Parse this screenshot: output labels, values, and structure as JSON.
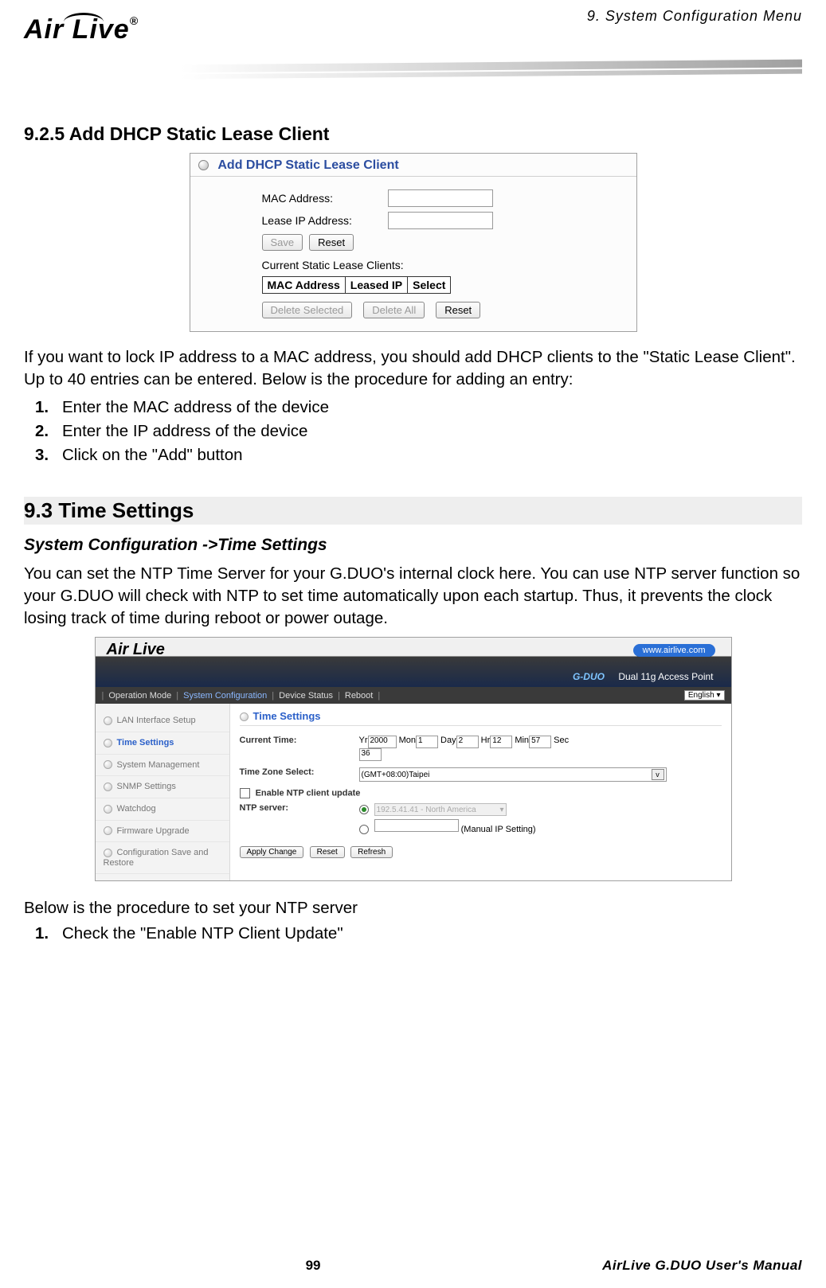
{
  "header": {
    "chapter": "9. System Configuration Menu",
    "logo_text": "Air Live",
    "logo_reg": "®"
  },
  "section_925": {
    "title": "9.2.5 Add DHCP Static Lease Client",
    "panel_title": "Add DHCP Static Lease Client",
    "mac_label": "MAC Address:",
    "ip_label": "Lease IP Address:",
    "save_btn": "Save",
    "reset_btn": "Reset",
    "current_label": "Current Static Lease Clients:",
    "col_mac": "MAC Address",
    "col_ip": "Leased IP",
    "col_sel": "Select",
    "del_sel_btn": "Delete Selected",
    "del_all_btn": "Delete All",
    "reset_btn2": "Reset",
    "para": "If you want to lock IP address to a MAC address, you should add DHCP clients to the \"Static Lease Client\".   Up to 40 entries can be entered.   Below is the procedure for adding an entry:",
    "step1": "Enter the MAC address of the device",
    "step2": "Enter the IP address of the device",
    "step3": "Click on the \"Add\" button"
  },
  "section_93": {
    "title": "9.3 Time  Settings",
    "breadcrumb": "System Configuration ->Time Settings",
    "para": "You can set the NTP Time Server for your G.DUO's internal clock here.   You can use NTP server function so your G.DUO will check with NTP to set time automatically upon each startup.   Thus, it prevents the clock losing track of time during reboot or power outage.",
    "banner_url": "www.airlive.com",
    "banner_model_prefix": "G-DUO",
    "banner_model_desc": "Dual 11g Access Point",
    "tab_op": "Operation Mode",
    "tab_sys": "System Configuration",
    "tab_dev": "Device Status",
    "tab_reboot": "Reboot",
    "lang": "English",
    "side_items": [
      "LAN Interface Setup",
      "Time Settings",
      "System Management",
      "SNMP Settings",
      "Watchdog",
      "Firmware Upgrade",
      "Configuration Save and Restore"
    ],
    "pane_title": "Time Settings",
    "lbl_current": "Current Time:",
    "yr": "Yr",
    "yr_v": "2000",
    "mon": "Mon",
    "mon_v": "1",
    "day": "Day",
    "day_v": "2",
    "hr": "Hr",
    "hr_v": "12",
    "min": "Min",
    "min_v": "57",
    "sec": "Sec",
    "sec_v": "36",
    "lbl_tz": "Time Zone Select:",
    "tz_value": "(GMT+08:00)Taipei",
    "lbl_ntp_check": "Enable NTP client update",
    "lbl_ntp_server": "NTP server:",
    "ntp_preset": "192.5.41.41 - North America",
    "ntp_manual": "(Manual IP Setting)",
    "btn_apply": "Apply Change",
    "btn_reset": "Reset",
    "btn_refresh": "Refresh",
    "below_para": "Below is the procedure to set your NTP server",
    "below_step1": "Check the \"Enable NTP Client Update\""
  },
  "footer": {
    "page": "99",
    "manual": "AirLive G.DUO User's Manual"
  }
}
